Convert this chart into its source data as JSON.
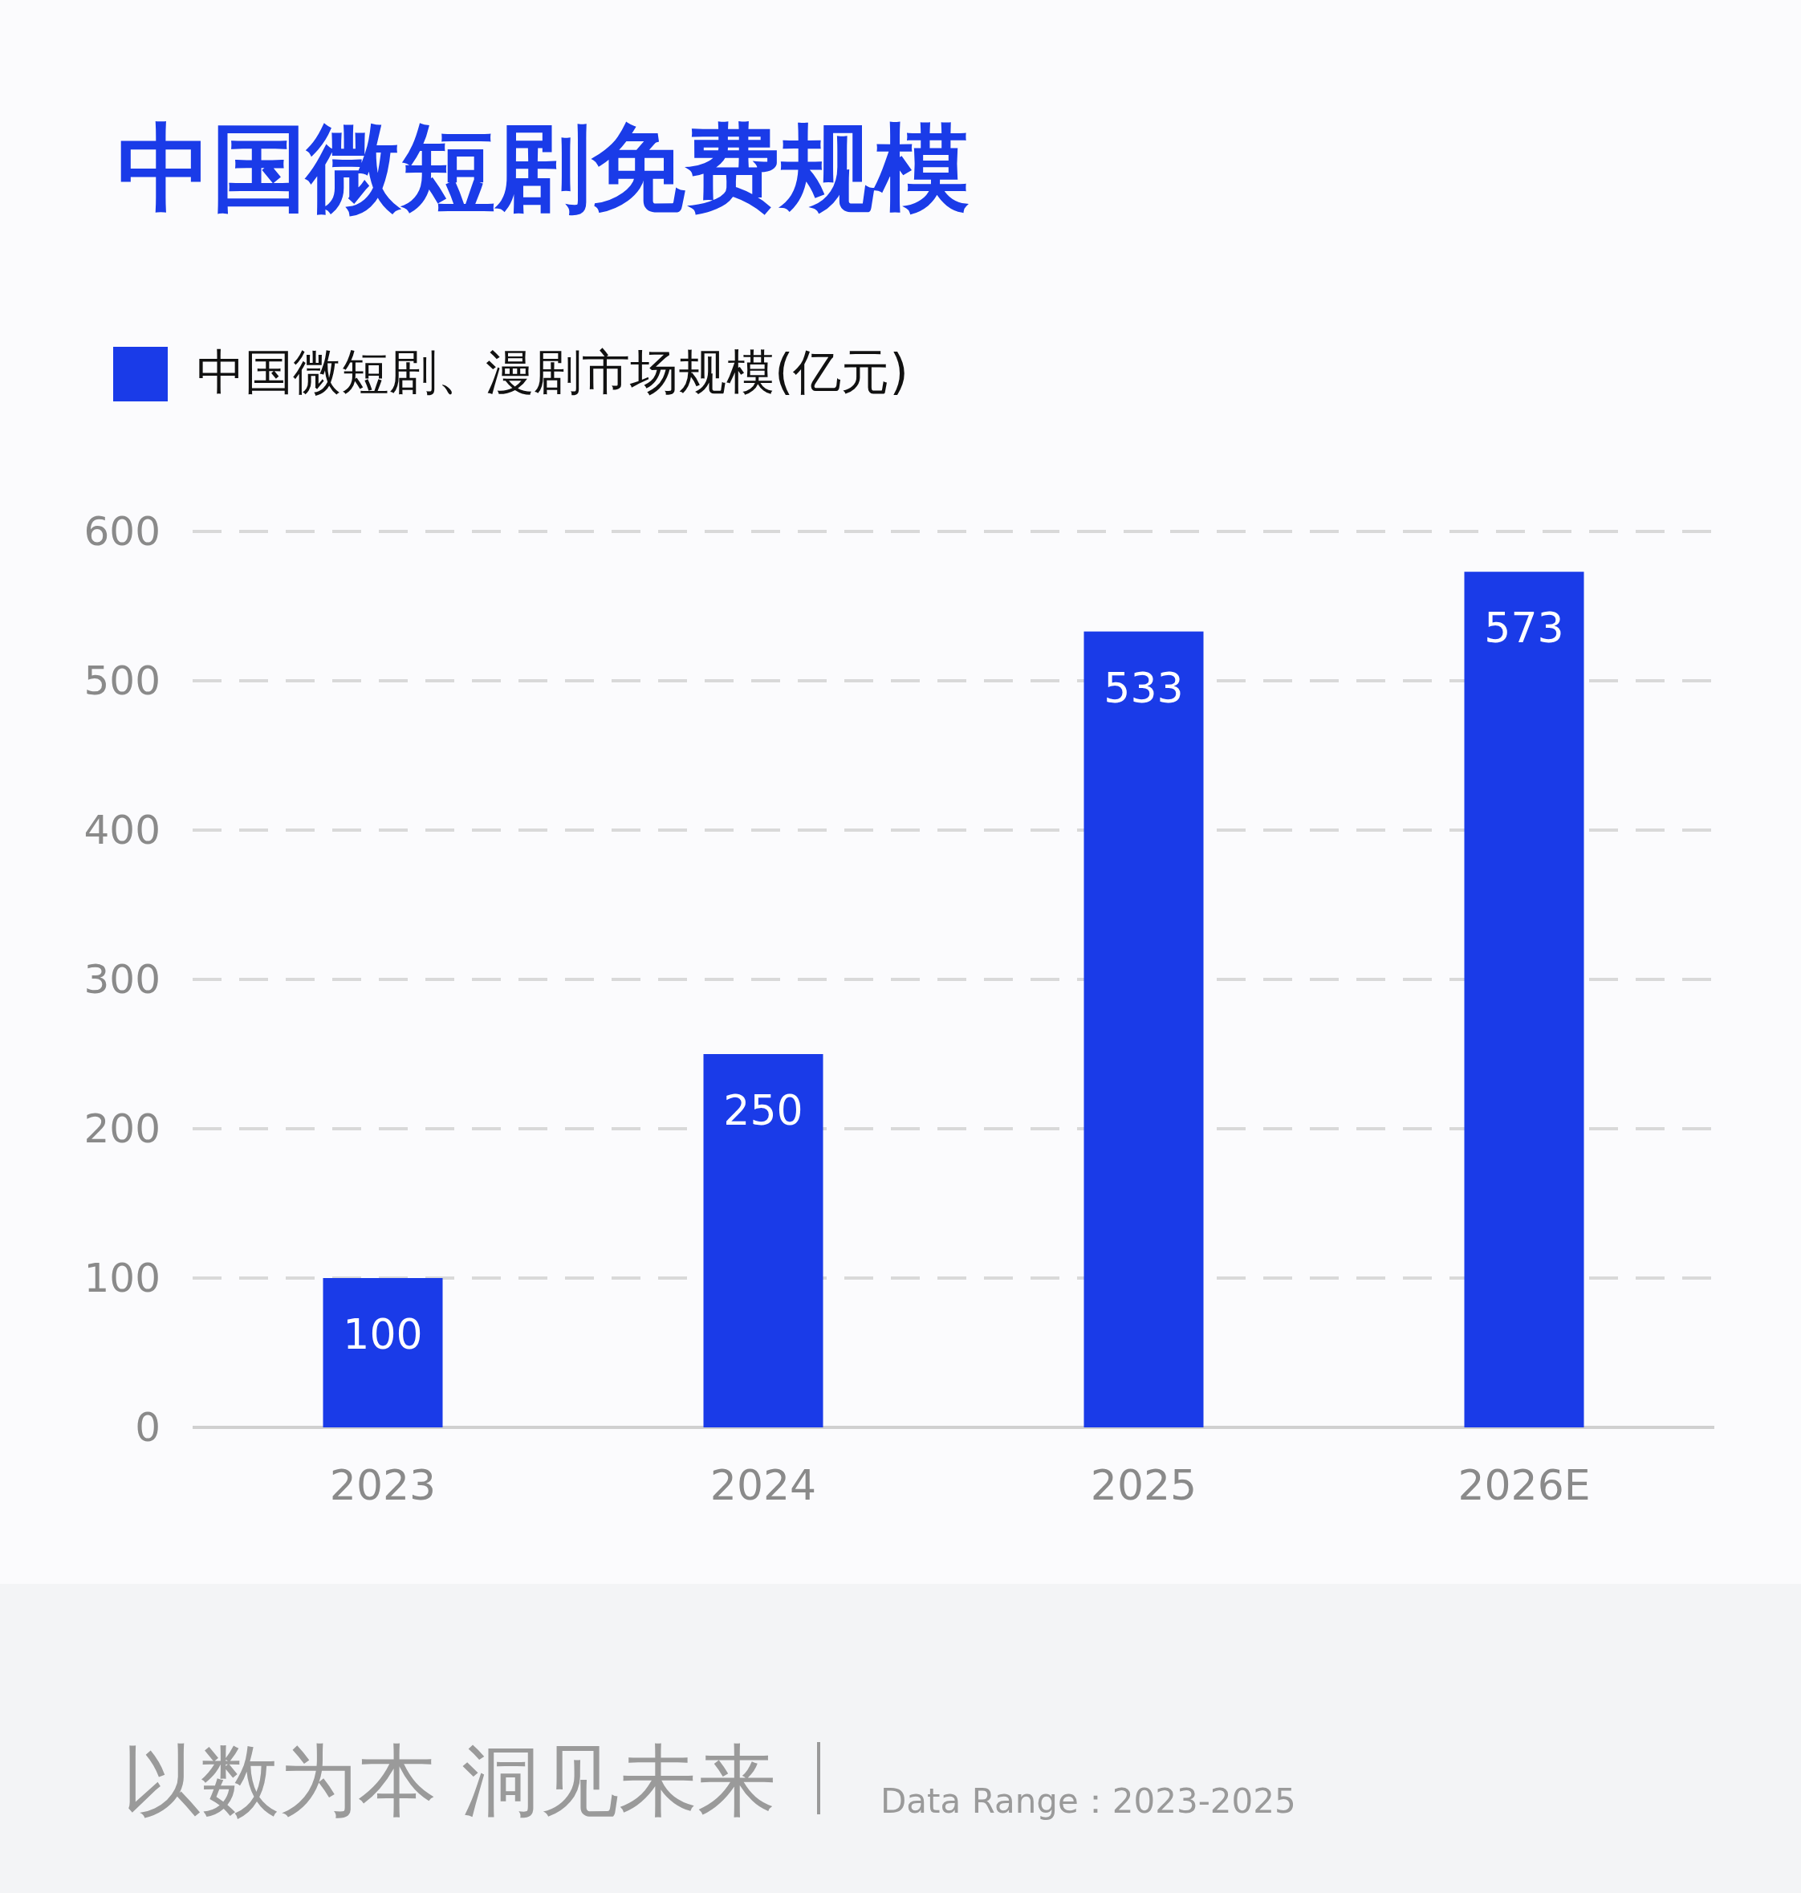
{
  "chart_data": {
    "type": "bar",
    "title": "中国微短剧免费规模",
    "categories": [
      "2023",
      "2024",
      "2025",
      "2026E"
    ],
    "series": [
      {
        "name": "中国微短剧、漫剧市场规模(亿元)",
        "color": "#1a3be8",
        "values": [
          100,
          250,
          533,
          573
        ]
      }
    ],
    "ylim": [
      0,
      600
    ],
    "yticks": [
      0,
      100,
      200,
      300,
      400,
      500,
      600
    ],
    "grid": "y",
    "legend": "top left",
    "data_labels": true,
    "annotations": [
      "以数为本 洞见未来",
      "Data Range：2023-2025"
    ]
  }
}
